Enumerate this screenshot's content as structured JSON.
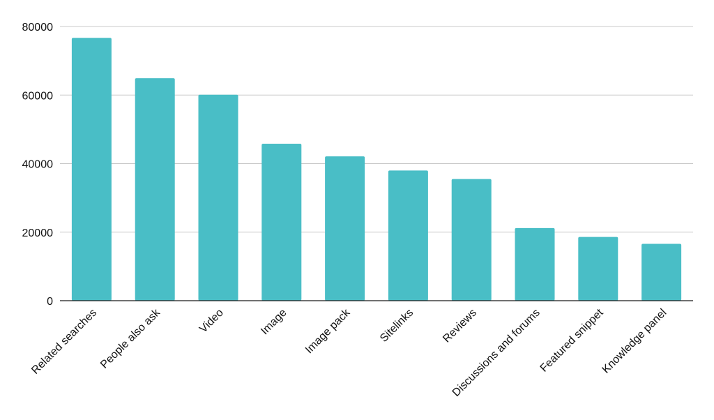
{
  "chart_data": {
    "type": "bar",
    "title": "",
    "xlabel": "",
    "ylabel": "",
    "categories": [
      "Related searches",
      "People also ask",
      "Video",
      "Image",
      "Image pack",
      "Sitelinks",
      "Reviews",
      "Discussions and forums",
      "Featured snippet",
      "Knowledge panel"
    ],
    "values": [
      76700,
      64900,
      60100,
      45800,
      42100,
      38000,
      35500,
      21200,
      18600,
      16600
    ],
    "ylim": [
      0,
      80000
    ],
    "yticks": [
      0,
      20000,
      40000,
      60000,
      80000
    ],
    "ytick_labels": [
      "0",
      "20000",
      "40000",
      "60000",
      "80000"
    ],
    "grid": true,
    "legend": "none",
    "bar_color": "#49BEC6",
    "gridline_color": "#c8c8c8",
    "axis_color": "#1a1a1a"
  }
}
